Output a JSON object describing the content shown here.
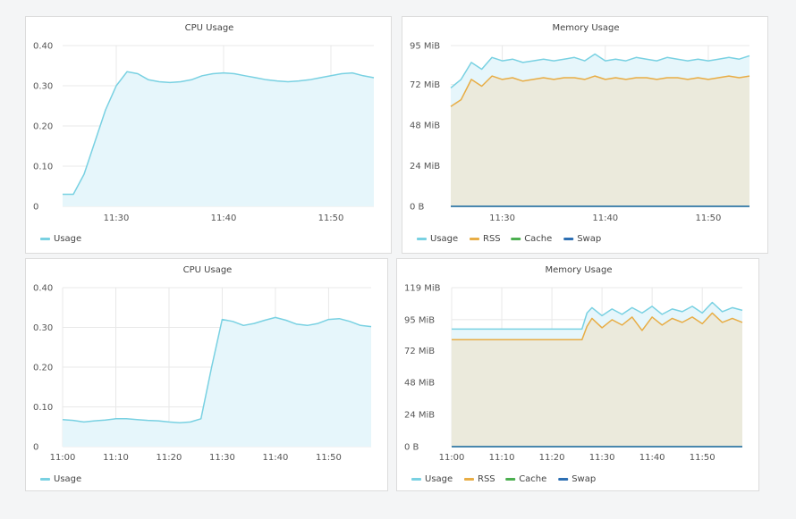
{
  "colors": {
    "usage": "#79d1e2",
    "usage_fill": "#e6f6fb",
    "rss": "#e8ad45",
    "rss_fill": "#ebeadc",
    "cache": "#4caf50",
    "swap": "#2d6fb3",
    "grid": "#e8e8e8"
  },
  "chart_data": [
    {
      "id": "cpu1",
      "type": "area",
      "title": "CPU Usage",
      "xlabel": "",
      "ylabel": "",
      "xlim": [
        "11:25",
        "11:54"
      ],
      "ylim": [
        0,
        0.4
      ],
      "y_ticks": [
        0,
        0.1,
        0.2,
        0.3,
        0.4
      ],
      "y_tick_labels": [
        "0",
        "0.10",
        "0.20",
        "0.30",
        "0.40"
      ],
      "x_ticks": [
        "11:30",
        "11:40",
        "11:50"
      ],
      "legend": [
        "Usage"
      ],
      "series": [
        {
          "name": "Usage",
          "x": [
            "11:25",
            "11:26",
            "11:27",
            "11:28",
            "11:29",
            "11:30",
            "11:31",
            "11:32",
            "11:33",
            "11:34",
            "11:35",
            "11:36",
            "11:37",
            "11:38",
            "11:39",
            "11:40",
            "11:41",
            "11:42",
            "11:43",
            "11:44",
            "11:45",
            "11:46",
            "11:47",
            "11:48",
            "11:49",
            "11:50",
            "11:51",
            "11:52",
            "11:53",
            "11:54"
          ],
          "values": [
            0.03,
            0.03,
            0.08,
            0.16,
            0.24,
            0.3,
            0.335,
            0.33,
            0.315,
            0.31,
            0.308,
            0.31,
            0.315,
            0.325,
            0.33,
            0.332,
            0.33,
            0.325,
            0.32,
            0.315,
            0.312,
            0.31,
            0.312,
            0.315,
            0.32,
            0.325,
            0.33,
            0.332,
            0.325,
            0.32
          ]
        }
      ]
    },
    {
      "id": "mem1",
      "type": "area",
      "title": "Memory Usage",
      "xlabel": "",
      "ylabel": "",
      "xlim": [
        "11:25",
        "11:54"
      ],
      "ylim": [
        0,
        95
      ],
      "y_ticks": [
        0,
        24,
        48,
        72,
        95
      ],
      "y_tick_labels": [
        "0 B",
        "24 MiB",
        "48 MiB",
        "72 MiB",
        "95 MiB"
      ],
      "x_ticks": [
        "11:30",
        "11:40",
        "11:50"
      ],
      "legend": [
        "Usage",
        "RSS",
        "Cache",
        "Swap"
      ],
      "series": [
        {
          "name": "Usage",
          "x": [
            "11:25",
            "11:26",
            "11:27",
            "11:28",
            "11:29",
            "11:30",
            "11:31",
            "11:32",
            "11:33",
            "11:34",
            "11:35",
            "11:36",
            "11:37",
            "11:38",
            "11:39",
            "11:40",
            "11:41",
            "11:42",
            "11:43",
            "11:44",
            "11:45",
            "11:46",
            "11:47",
            "11:48",
            "11:49",
            "11:50",
            "11:51",
            "11:52",
            "11:53",
            "11:54"
          ],
          "values": [
            70,
            75,
            85,
            81,
            88,
            86,
            87,
            85,
            86,
            87,
            86,
            87,
            88,
            86,
            90,
            86,
            87,
            86,
            88,
            87,
            86,
            88,
            87,
            86,
            87,
            86,
            87,
            88,
            87,
            89
          ]
        },
        {
          "name": "RSS",
          "x": [
            "11:25",
            "11:26",
            "11:27",
            "11:28",
            "11:29",
            "11:30",
            "11:31",
            "11:32",
            "11:33",
            "11:34",
            "11:35",
            "11:36",
            "11:37",
            "11:38",
            "11:39",
            "11:40",
            "11:41",
            "11:42",
            "11:43",
            "11:44",
            "11:45",
            "11:46",
            "11:47",
            "11:48",
            "11:49",
            "11:50",
            "11:51",
            "11:52",
            "11:53",
            "11:54"
          ],
          "values": [
            59,
            63,
            75,
            71,
            77,
            75,
            76,
            74,
            75,
            76,
            75,
            76,
            76,
            75,
            77,
            75,
            76,
            75,
            76,
            76,
            75,
            76,
            76,
            75,
            76,
            75,
            76,
            77,
            76,
            77
          ]
        },
        {
          "name": "Cache",
          "x": [
            "11:25",
            "11:54"
          ],
          "values": [
            0,
            0
          ]
        },
        {
          "name": "Swap",
          "x": [
            "11:25",
            "11:54"
          ],
          "values": [
            0,
            0
          ]
        }
      ]
    },
    {
      "id": "cpu2",
      "type": "area",
      "title": "CPU Usage",
      "xlabel": "",
      "ylabel": "",
      "xlim": [
        "11:00",
        "11:58"
      ],
      "ylim": [
        0,
        0.4
      ],
      "y_ticks": [
        0,
        0.1,
        0.2,
        0.3,
        0.4
      ],
      "y_tick_labels": [
        "0",
        "0.10",
        "0.20",
        "0.30",
        "0.40"
      ],
      "x_ticks": [
        "11:00",
        "11:10",
        "11:20",
        "11:30",
        "11:40",
        "11:50"
      ],
      "legend": [
        "Usage"
      ],
      "series": [
        {
          "name": "Usage",
          "x": [
            "11:00",
            "11:02",
            "11:04",
            "11:06",
            "11:08",
            "11:10",
            "11:12",
            "11:14",
            "11:16",
            "11:18",
            "11:20",
            "11:22",
            "11:24",
            "11:26",
            "11:28",
            "11:30",
            "11:32",
            "11:34",
            "11:36",
            "11:38",
            "11:40",
            "11:42",
            "11:44",
            "11:46",
            "11:48",
            "11:50",
            "11:52",
            "11:54",
            "11:56",
            "11:58"
          ],
          "values": [
            0.068,
            0.066,
            0.062,
            0.065,
            0.067,
            0.07,
            0.07,
            0.068,
            0.066,
            0.065,
            0.062,
            0.06,
            0.062,
            0.07,
            0.2,
            0.32,
            0.315,
            0.305,
            0.31,
            0.318,
            0.325,
            0.318,
            0.308,
            0.305,
            0.31,
            0.32,
            0.322,
            0.315,
            0.305,
            0.302
          ]
        }
      ]
    },
    {
      "id": "mem2",
      "type": "area",
      "title": "Memory Usage",
      "xlabel": "",
      "ylabel": "",
      "xlim": [
        "11:00",
        "11:58"
      ],
      "ylim": [
        0,
        119
      ],
      "y_ticks": [
        0,
        24,
        48,
        72,
        95,
        119
      ],
      "y_tick_labels": [
        "0 B",
        "24 MiB",
        "48 MiB",
        "72 MiB",
        "95 MiB",
        "119 MiB"
      ],
      "x_ticks": [
        "11:00",
        "11:10",
        "11:20",
        "11:30",
        "11:40",
        "11:50"
      ],
      "legend": [
        "Usage",
        "RSS",
        "Cache",
        "Swap"
      ],
      "series": [
        {
          "name": "Usage",
          "x": [
            "11:00",
            "11:02",
            "11:04",
            "11:06",
            "11:08",
            "11:10",
            "11:12",
            "11:14",
            "11:16",
            "11:18",
            "11:20",
            "11:22",
            "11:24",
            "11:26",
            "11:27",
            "11:28",
            "11:30",
            "11:32",
            "11:34",
            "11:36",
            "11:38",
            "11:40",
            "11:42",
            "11:44",
            "11:46",
            "11:48",
            "11:50",
            "11:52",
            "11:54",
            "11:56",
            "11:58"
          ],
          "values": [
            88,
            88,
            88,
            88,
            88,
            88,
            88,
            88,
            88,
            88,
            88,
            88,
            88,
            88,
            100,
            104,
            98,
            103,
            99,
            104,
            100,
            105,
            99,
            103,
            101,
            105,
            100,
            108,
            101,
            104,
            102
          ]
        },
        {
          "name": "RSS",
          "x": [
            "11:00",
            "11:02",
            "11:04",
            "11:06",
            "11:08",
            "11:10",
            "11:12",
            "11:14",
            "11:16",
            "11:18",
            "11:20",
            "11:22",
            "11:24",
            "11:26",
            "11:27",
            "11:28",
            "11:30",
            "11:32",
            "11:34",
            "11:36",
            "11:38",
            "11:40",
            "11:42",
            "11:44",
            "11:46",
            "11:48",
            "11:50",
            "11:52",
            "11:54",
            "11:56",
            "11:58"
          ],
          "values": [
            80,
            80,
            80,
            80,
            80,
            80,
            80,
            80,
            80,
            80,
            80,
            80,
            80,
            80,
            90,
            96,
            89,
            95,
            91,
            97,
            87,
            97,
            91,
            96,
            93,
            97,
            92,
            100,
            93,
            96,
            93
          ]
        },
        {
          "name": "Cache",
          "x": [
            "11:00",
            "11:58"
          ],
          "values": [
            0,
            0
          ]
        },
        {
          "name": "Swap",
          "x": [
            "11:00",
            "11:58"
          ],
          "values": [
            0,
            0
          ]
        }
      ]
    }
  ]
}
